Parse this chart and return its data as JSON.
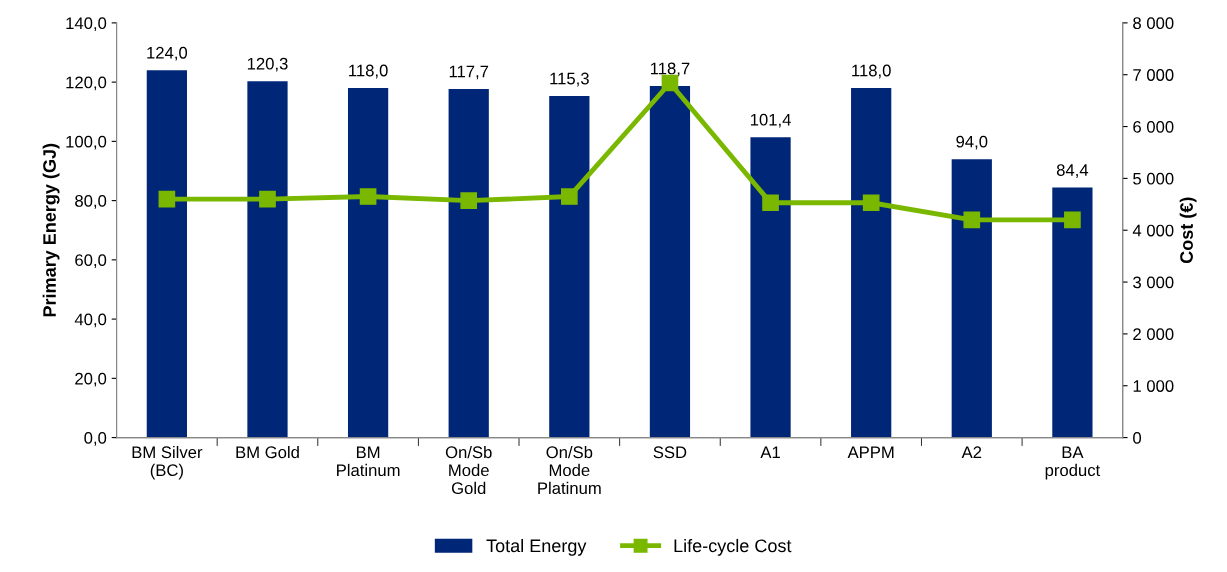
{
  "chart_data": {
    "type": "bar",
    "ylabel": "Primary Energy (GJ)",
    "y2label": "Cost (€)",
    "categories": [
      "BM Silver\n(BC)",
      "BM Gold",
      "BM\nPlatinum",
      "On/Sb\nMode\nGold",
      "On/Sb\nMode\nPlatinum",
      "SSD",
      "A1",
      "APPM",
      "A2",
      "BA\nproduct"
    ],
    "series": [
      {
        "name": "Total Energy",
        "color": "#002677",
        "values": [
          124.0,
          120.3,
          118.0,
          117.7,
          115.3,
          118.7,
          101.4,
          118.0,
          94.0,
          84.4
        ],
        "value_labels": [
          "124,0",
          "120,3",
          "118,0",
          "117,7",
          "115,3",
          "118,7",
          "101,4",
          "118,0",
          "94,0",
          "84,4"
        ]
      },
      {
        "name": "Life-cycle Cost",
        "type": "line",
        "axis": "y2",
        "color": "#7ab800",
        "marker": "square",
        "line_style": "solid",
        "values": [
          4600,
          4600,
          4650,
          4570,
          4650,
          6840,
          4530,
          4530,
          4200,
          4200
        ]
      }
    ],
    "ylim": [
      0,
      140
    ],
    "yticks": [
      {
        "value": 0,
        "label": "0,0"
      },
      {
        "value": 20,
        "label": "20,0"
      },
      {
        "value": 40,
        "label": "40,0"
      },
      {
        "value": 60,
        "label": "60,0"
      },
      {
        "value": 80,
        "label": "80,0"
      },
      {
        "value": 100,
        "label": "100,0"
      },
      {
        "value": 120,
        "label": "120,0"
      },
      {
        "value": 140,
        "label": "140,0"
      }
    ],
    "y2lim": [
      0,
      8000
    ],
    "y2ticks": [
      0,
      {
        "value": 1000,
        "label": "1 000"
      },
      {
        "value": 2000,
        "label": "2 000"
      },
      {
        "value": 3000,
        "label": "3 000"
      },
      {
        "value": 4000,
        "label": "4 000"
      },
      {
        "value": 5000,
        "label": "5 000"
      },
      {
        "value": 6000,
        "label": "6 000"
      },
      {
        "value": 7000,
        "label": "7 000"
      },
      {
        "value": 8000,
        "label": "8 000"
      }
    ],
    "grid": false,
    "legend": "bottom"
  }
}
